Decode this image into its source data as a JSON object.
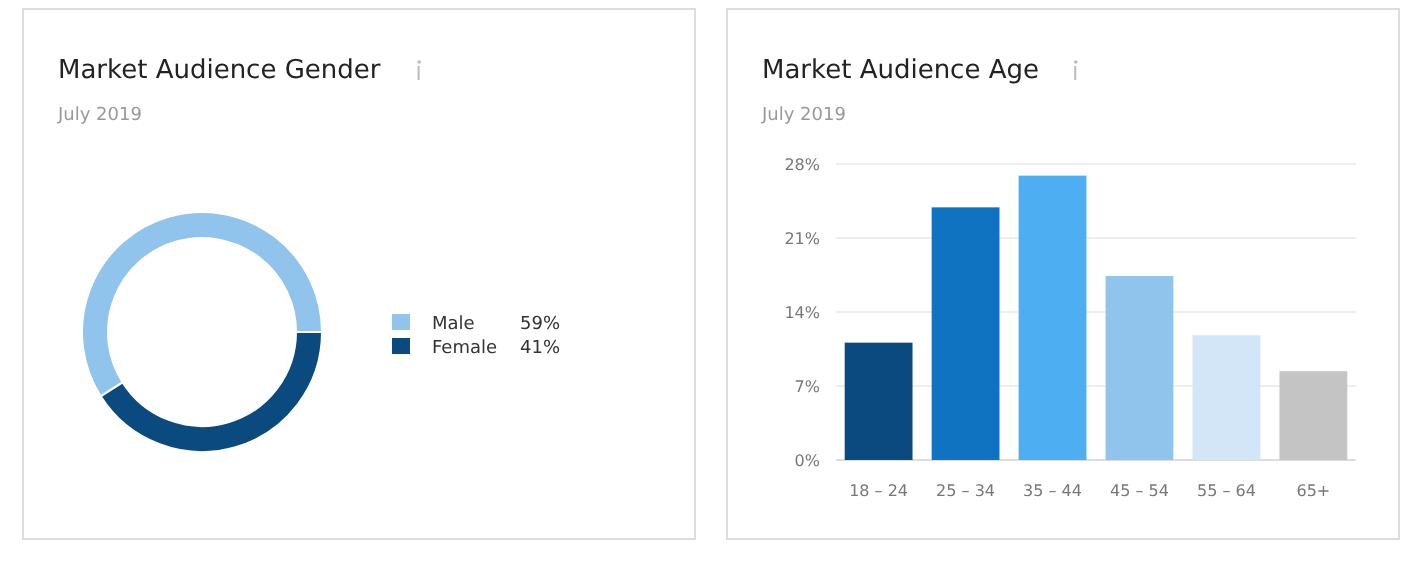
{
  "chart_data": [
    {
      "type": "donut",
      "title": "Market Audience Gender",
      "subtitle": "July 2019",
      "categories": [
        "Male",
        "Female"
      ],
      "values": [
        59,
        41
      ],
      "colors": [
        "#90c4ec",
        "#0a4a7e"
      ],
      "legend": "right",
      "value_labels": [
        "59%",
        "41%"
      ]
    },
    {
      "type": "bar",
      "title": "Market Audience Age",
      "subtitle": "July 2019",
      "categories": [
        "18 – 24",
        "25 – 34",
        "35 – 44",
        "45 – 54",
        "55 – 64",
        "65+"
      ],
      "values": [
        11.1,
        23.9,
        26.9,
        17.4,
        11.8,
        8.4
      ],
      "colors": [
        "#0a4a7e",
        "#0f73c2",
        "#4daef2",
        "#90c4ec",
        "#d2e6f7",
        "#c4c4c4"
      ],
      "ylim": [
        0,
        28
      ],
      "yticks": [
        {
          "value": 0,
          "label": "0%"
        },
        {
          "value": 7,
          "label": "7%"
        },
        {
          "value": 14,
          "label": "14%"
        },
        {
          "value": 21,
          "label": "21%"
        },
        {
          "value": 28,
          "label": "28%"
        }
      ],
      "grid": "y"
    }
  ]
}
